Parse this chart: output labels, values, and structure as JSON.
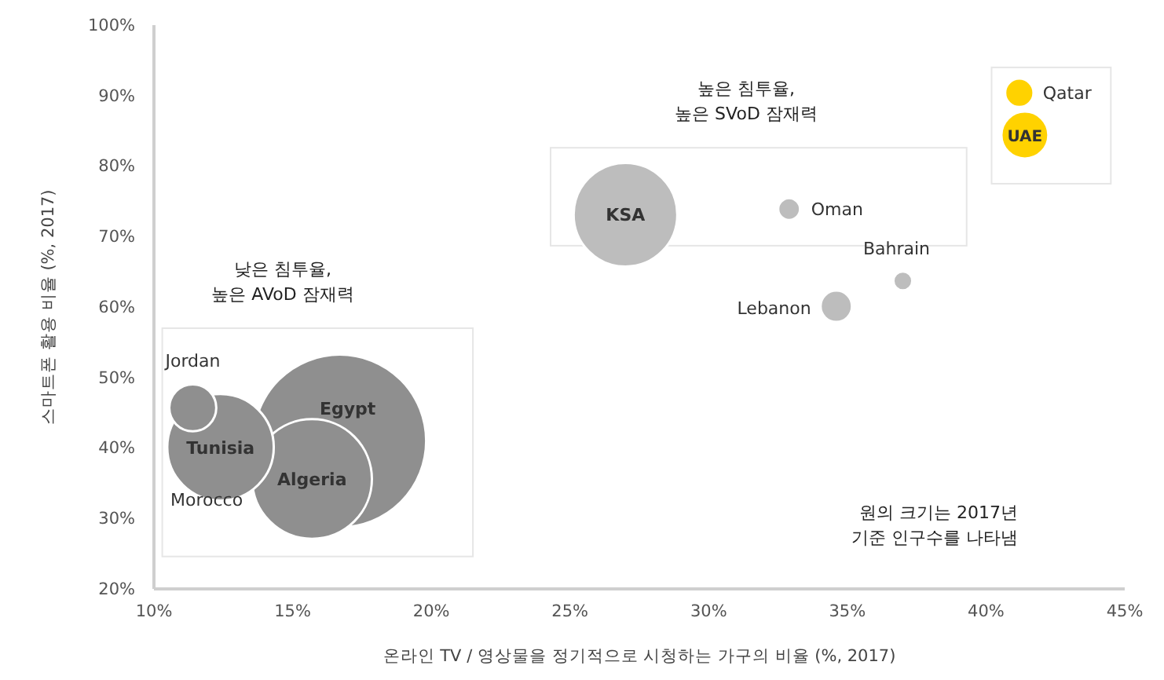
{
  "chart_data": {
    "type": "bubble",
    "xlabel": "온라인 TV / 영상물을 정기적으로 시청하는 가구의 비율 (%, 2017)",
    "ylabel": "스마트폰 활용 비율 (%, 2017)",
    "xlim": [
      10,
      45
    ],
    "xticks": [
      {
        "value": 10,
        "label": "10%"
      },
      {
        "value": 15,
        "label": "15%"
      },
      {
        "value": 20,
        "label": "20%"
      },
      {
        "value": 25,
        "label": "25%"
      },
      {
        "value": 30,
        "label": "30%"
      },
      {
        "value": 35,
        "label": "35%"
      },
      {
        "value": 40,
        "label": "40%"
      },
      {
        "value": 45,
        "label": "45%"
      }
    ],
    "ylim": [
      20,
      100
    ],
    "yticks": [
      {
        "value": 20,
        "label": "20%"
      },
      {
        "value": 30,
        "label": "30%"
      },
      {
        "value": 40,
        "label": "40%"
      },
      {
        "value": 50,
        "label": "50%"
      },
      {
        "value": 60,
        "label": "60%"
      },
      {
        "value": 70,
        "label": "70%"
      },
      {
        "value": 80,
        "label": "80%"
      },
      {
        "value": 90,
        "label": "90%"
      },
      {
        "value": 100,
        "label": "100%"
      }
    ],
    "grid": false,
    "series": [
      {
        "name": "Egypt",
        "color": "#8f8f8f",
        "x": [
          16.7
        ],
        "values": [
          41.0
        ],
        "sizes": [
          1
        ]
      },
      {
        "name": "Algeria",
        "color": "#8f8f8f",
        "x": [
          15.7
        ],
        "values": [
          35.6
        ],
        "sizes": [
          0.48
        ]
      },
      {
        "name": "Tunisia",
        "color": "#8f8f8f",
        "x": [
          12.4
        ],
        "values": [
          40.1
        ],
        "sizes": [
          0.38
        ]
      },
      {
        "name": "Jordan",
        "color": "#8f8f8f",
        "x": [
          11.4
        ],
        "values": [
          45.7
        ],
        "sizes": [
          0.074
        ]
      },
      {
        "name": "KSA",
        "color": "#bdbdbd",
        "x": [
          27.0
        ],
        "values": [
          73.1
        ],
        "sizes": [
          0.36
        ]
      },
      {
        "name": "Oman",
        "color": "#bdbdbd",
        "x": [
          32.9
        ],
        "values": [
          73.9
        ],
        "sizes": [
          0.016
        ]
      },
      {
        "name": "Bahrain",
        "color": "#bdbdbd",
        "x": [
          37.0
        ],
        "values": [
          63.7
        ],
        "sizes": [
          0.012
        ]
      },
      {
        "name": "Lebanon",
        "color": "#bdbdbd",
        "x": [
          34.6
        ],
        "values": [
          60.1
        ],
        "sizes": [
          0.033
        ]
      },
      {
        "name": "Qatar",
        "color": "#ffd200",
        "x": [
          41.2
        ],
        "values": [
          90.4
        ],
        "sizes": [
          0.027
        ]
      },
      {
        "name": "UAE",
        "color": "#ffd200",
        "x": [
          41.4
        ],
        "values": [
          84.4
        ],
        "sizes": [
          0.074
        ]
      }
    ],
    "annotations": [
      {
        "text": "Morocco",
        "x": 11.9,
        "y": 31.8
      },
      "낮은 침투율,\n높은 AVoD 잠재력",
      "높은 침투율,\n높은 SVoD 잠재력",
      "원의 크기는 2017년\n기준 인구수를 나타냄"
    ]
  }
}
